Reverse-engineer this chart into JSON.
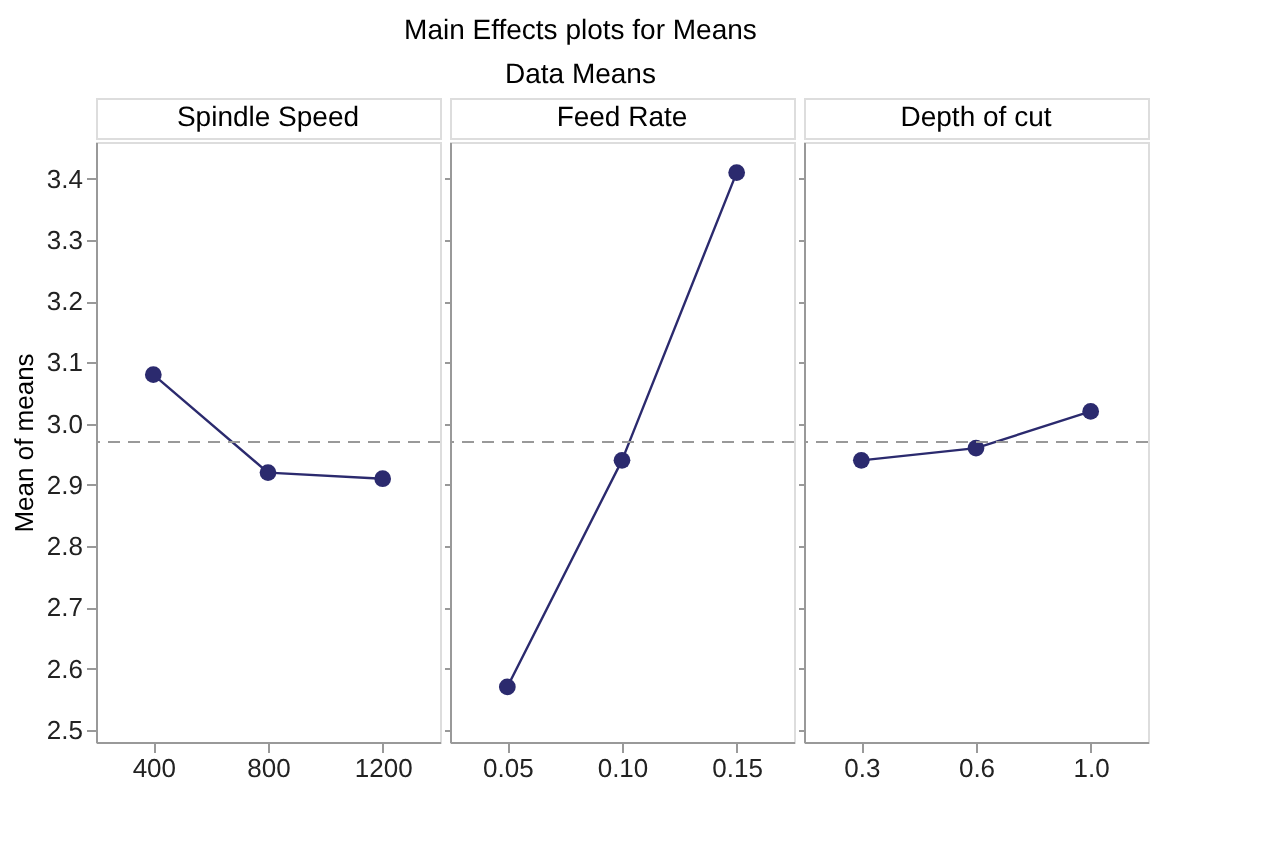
{
  "chart_data": [
    {
      "type": "line",
      "title": "Spindle Speed",
      "ylabel": "Mean of means",
      "annotations": [
        "Main Effects plots for Means",
        "Data Means"
      ],
      "categories": [
        "400",
        "800",
        "1200"
      ],
      "marker": "circle",
      "grid": false,
      "series": [
        {
          "color": "#2b2a6e",
          "values": [
            3.08,
            2.92,
            2.91
          ]
        }
      ],
      "ylim": [
        2.48,
        3.46
      ],
      "yticks": [
        2.5,
        2.6,
        2.7,
        2.8,
        2.9,
        {
          "value": 3.0,
          "label": "3.0"
        },
        3.1,
        3.2,
        3.3,
        3.4
      ],
      "ref_lines": [
        {
          "axis": "y",
          "value": 2.97,
          "color": "#999999",
          "line_style": "dashed"
        }
      ]
    },
    {
      "type": "line",
      "title": "Feed Rate",
      "categories": [
        "0.05",
        "0.10",
        "0.15"
      ],
      "marker": "circle",
      "grid": false,
      "tick_labels": "x",
      "series": [
        {
          "color": "#2b2a6e",
          "values": [
            2.57,
            2.94,
            3.41
          ]
        }
      ],
      "ylim": [
        2.48,
        3.46
      ],
      "yticks": [
        2.5,
        2.6,
        2.7,
        2.8,
        2.9,
        3.0,
        3.1,
        3.2,
        3.3,
        3.4
      ],
      "ref_lines": [
        {
          "axis": "y",
          "value": 2.97,
          "color": "#999999",
          "line_style": "dashed"
        }
      ]
    },
    {
      "type": "line",
      "title": "Depth of cut",
      "categories": [
        "0.3",
        "0.6",
        "1.0"
      ],
      "marker": "circle",
      "grid": false,
      "tick_labels": "x",
      "series": [
        {
          "color": "#2b2a6e",
          "values": [
            2.94,
            2.96,
            3.02
          ]
        }
      ],
      "ylim": [
        2.48,
        3.46
      ],
      "yticks": [
        2.5,
        2.6,
        2.7,
        2.8,
        2.9,
        3.0,
        3.1,
        3.2,
        3.3,
        3.4
      ],
      "ref_lines": [
        {
          "axis": "y",
          "value": 2.97,
          "color": "#999999",
          "line_style": "dashed"
        }
      ]
    }
  ]
}
